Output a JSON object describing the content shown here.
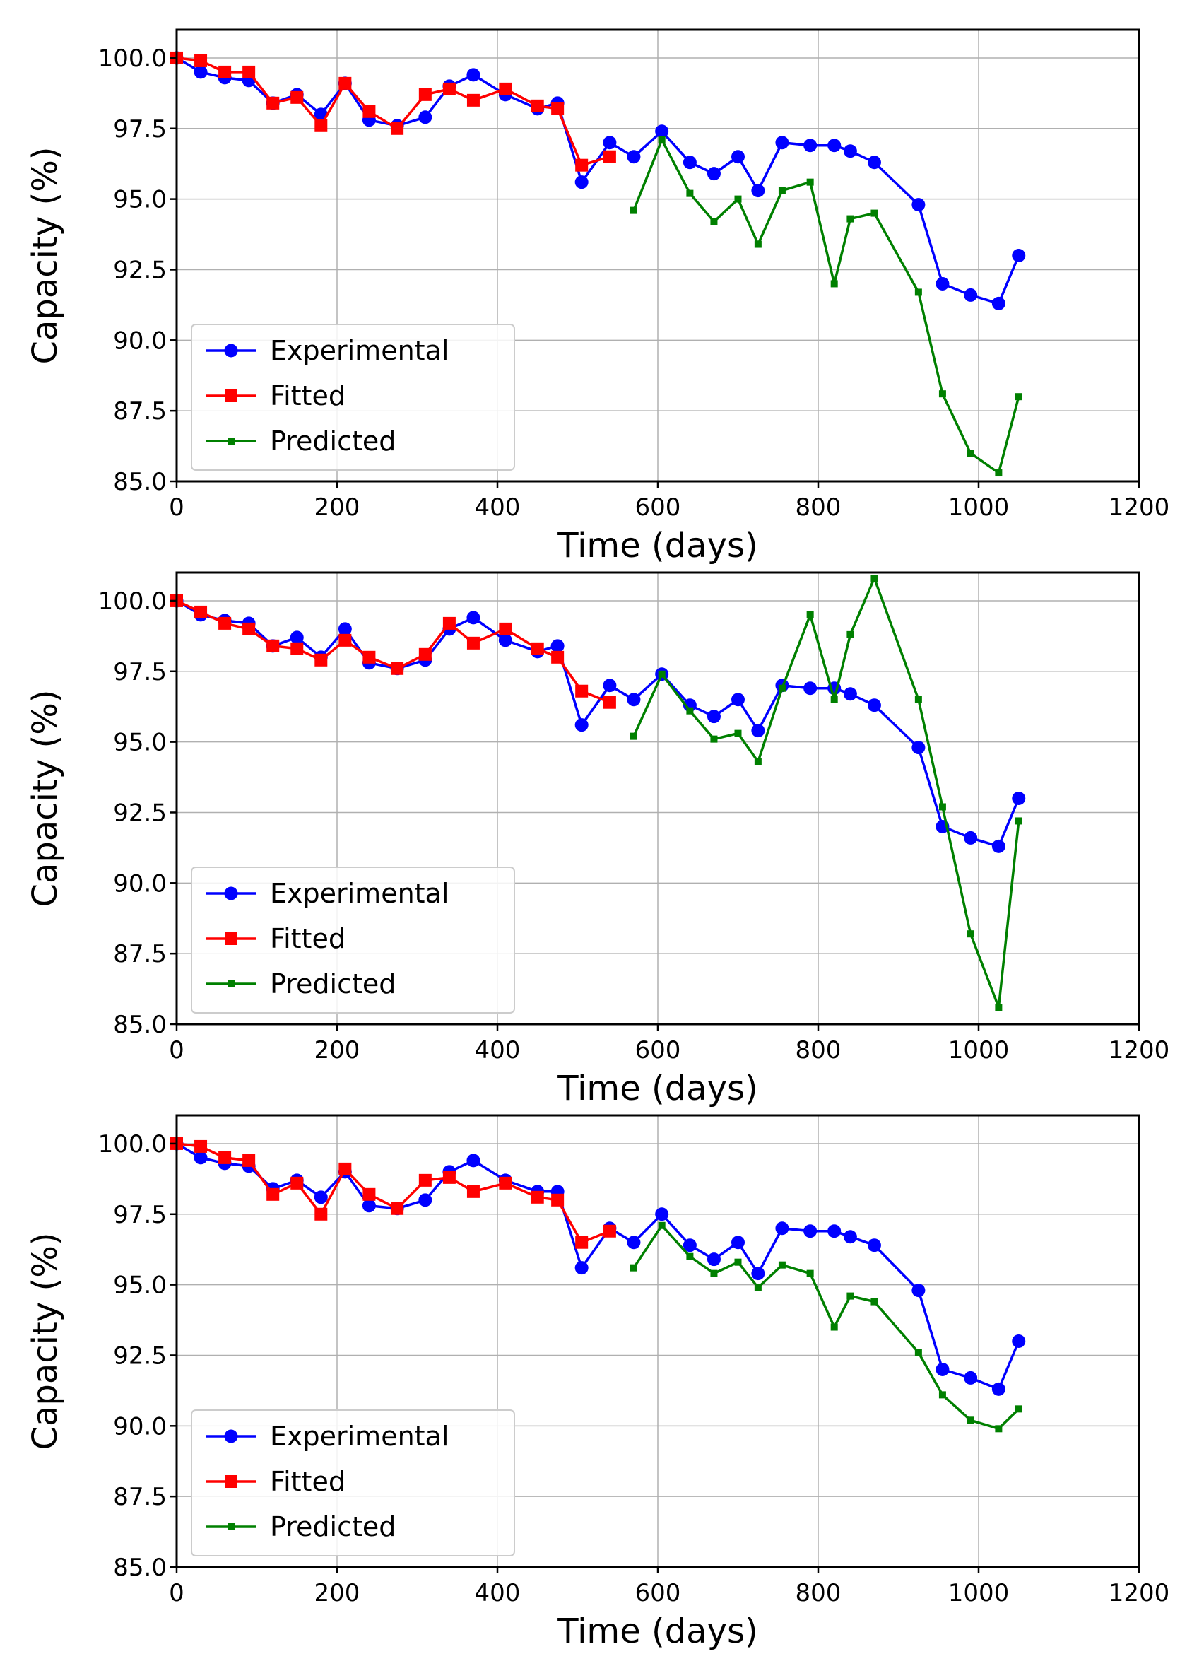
{
  "colors": {
    "experimental": "#0000ff",
    "fitted": "#ff0000",
    "predicted": "#008000",
    "grid": "#b0b0b0",
    "axes": "#000000"
  },
  "chart_data": [
    {
      "type": "line",
      "xlabel": "Time (days)",
      "ylabel": "Capacity (%)",
      "xlim": [
        0,
        1200
      ],
      "ylim": [
        85,
        101
      ],
      "xticks": [
        0,
        200,
        400,
        600,
        800,
        1000,
        1200
      ],
      "xtick_labels": [
        "0",
        "200",
        "400",
        "600",
        "800",
        "1000",
        "1200"
      ],
      "yticks": [
        85,
        87.5,
        90,
        92.5,
        95,
        97.5,
        100
      ],
      "ytick_labels": [
        "85.0",
        "87.5",
        "90.0",
        "92.5",
        "95.0",
        "97.5",
        "100.0"
      ],
      "grid": true,
      "legend_position": "bottom-left",
      "series": [
        {
          "name": "Experimental",
          "color": "#0000ff",
          "marker": "circle",
          "x": [
            0,
            30,
            60,
            90,
            120,
            150,
            180,
            210,
            240,
            275,
            310,
            340,
            370,
            410,
            450,
            475,
            505,
            540,
            570,
            605,
            640,
            670,
            700,
            725,
            755,
            790,
            820,
            840,
            870,
            925,
            955,
            990,
            1025,
            1050
          ],
          "y": [
            100.0,
            99.5,
            99.3,
            99.2,
            98.4,
            98.7,
            98.0,
            99.1,
            97.8,
            97.6,
            97.9,
            99.0,
            99.4,
            98.7,
            98.2,
            98.4,
            95.6,
            97.0,
            96.5,
            97.4,
            96.3,
            95.9,
            96.5,
            95.3,
            97.0,
            96.9,
            96.9,
            96.7,
            96.3,
            94.8,
            92.0,
            91.6,
            91.3,
            93.0
          ]
        },
        {
          "name": "Fitted",
          "color": "#ff0000",
          "marker": "square",
          "x": [
            0,
            30,
            60,
            90,
            120,
            150,
            180,
            210,
            240,
            275,
            310,
            340,
            370,
            410,
            450,
            475,
            505,
            540
          ],
          "y": [
            100.0,
            99.9,
            99.5,
            99.5,
            98.4,
            98.6,
            97.6,
            99.1,
            98.1,
            97.5,
            98.7,
            98.9,
            98.5,
            98.9,
            98.3,
            98.2,
            96.2,
            96.5
          ]
        },
        {
          "name": "Predicted",
          "color": "#008000",
          "marker": "small-square",
          "x": [
            570,
            605,
            640,
            670,
            700,
            725,
            755,
            790,
            820,
            840,
            870,
            925,
            955,
            990,
            1025,
            1050
          ],
          "y": [
            94.6,
            97.1,
            95.2,
            94.2,
            95.0,
            93.4,
            95.3,
            95.6,
            92.0,
            94.3,
            94.5,
            91.7,
            88.1,
            86.0,
            85.3,
            88.0
          ]
        }
      ]
    },
    {
      "type": "line",
      "xlabel": "Time (days)",
      "ylabel": "Capacity (%)",
      "xlim": [
        0,
        1200
      ],
      "ylim": [
        85,
        101
      ],
      "xticks": [
        0,
        200,
        400,
        600,
        800,
        1000,
        1200
      ],
      "xtick_labels": [
        "0",
        "200",
        "400",
        "600",
        "800",
        "1000",
        "1200"
      ],
      "yticks": [
        85,
        87.5,
        90,
        92.5,
        95,
        97.5,
        100
      ],
      "ytick_labels": [
        "85.0",
        "87.5",
        "90.0",
        "92.5",
        "95.0",
        "97.5",
        "100.0"
      ],
      "grid": true,
      "legend_position": "bottom-left",
      "series": [
        {
          "name": "Experimental",
          "color": "#0000ff",
          "marker": "circle",
          "x": [
            0,
            30,
            60,
            90,
            120,
            150,
            180,
            210,
            240,
            275,
            310,
            340,
            370,
            410,
            450,
            475,
            505,
            540,
            570,
            605,
            640,
            670,
            700,
            725,
            755,
            790,
            820,
            840,
            870,
            925,
            955,
            990,
            1025,
            1050
          ],
          "y": [
            100.0,
            99.5,
            99.3,
            99.2,
            98.4,
            98.7,
            98.0,
            99.0,
            97.8,
            97.6,
            97.9,
            99.0,
            99.4,
            98.6,
            98.2,
            98.4,
            95.6,
            97.0,
            96.5,
            97.4,
            96.3,
            95.9,
            96.5,
            95.4,
            97.0,
            96.9,
            96.9,
            96.7,
            96.3,
            94.8,
            92.0,
            91.6,
            91.3,
            93.0
          ]
        },
        {
          "name": "Fitted",
          "color": "#ff0000",
          "marker": "square",
          "x": [
            0,
            30,
            60,
            90,
            120,
            150,
            180,
            210,
            240,
            275,
            310,
            340,
            370,
            410,
            450,
            475,
            505,
            540
          ],
          "y": [
            100.0,
            99.6,
            99.2,
            99.0,
            98.4,
            98.3,
            97.9,
            98.6,
            98.0,
            97.6,
            98.1,
            99.2,
            98.5,
            99.0,
            98.3,
            98.0,
            96.8,
            96.4
          ]
        },
        {
          "name": "Predicted",
          "color": "#008000",
          "marker": "small-square",
          "x": [
            570,
            605,
            640,
            670,
            700,
            725,
            755,
            790,
            820,
            840,
            870,
            925,
            955,
            990,
            1025,
            1050
          ],
          "y": [
            95.2,
            97.4,
            96.1,
            95.1,
            95.3,
            94.3,
            96.9,
            99.5,
            96.5,
            98.8,
            100.8,
            96.5,
            92.7,
            88.2,
            85.6,
            92.2
          ]
        }
      ]
    },
    {
      "type": "line",
      "xlabel": "Time (days)",
      "ylabel": "Capacity (%)",
      "xlim": [
        0,
        1200
      ],
      "ylim": [
        85,
        101
      ],
      "xticks": [
        0,
        200,
        400,
        600,
        800,
        1000,
        1200
      ],
      "xtick_labels": [
        "0",
        "200",
        "400",
        "600",
        "800",
        "1000",
        "1200"
      ],
      "yticks": [
        85,
        87.5,
        90,
        92.5,
        95,
        97.5,
        100
      ],
      "ytick_labels": [
        "85.0",
        "87.5",
        "90.0",
        "92.5",
        "95.0",
        "97.5",
        "100.0"
      ],
      "grid": true,
      "legend_position": "bottom-left",
      "series": [
        {
          "name": "Experimental",
          "color": "#0000ff",
          "marker": "circle",
          "x": [
            0,
            30,
            60,
            90,
            120,
            150,
            180,
            210,
            240,
            275,
            310,
            340,
            370,
            410,
            450,
            475,
            505,
            540,
            570,
            605,
            640,
            670,
            700,
            725,
            755,
            790,
            820,
            840,
            870,
            925,
            955,
            990,
            1025,
            1050
          ],
          "y": [
            100.0,
            99.5,
            99.3,
            99.2,
            98.4,
            98.7,
            98.1,
            99.0,
            97.8,
            97.7,
            98.0,
            99.0,
            99.4,
            98.7,
            98.3,
            98.3,
            95.6,
            97.0,
            96.5,
            97.5,
            96.4,
            95.9,
            96.5,
            95.4,
            97.0,
            96.9,
            96.9,
            96.7,
            96.4,
            94.8,
            92.0,
            91.7,
            91.3,
            93.0
          ]
        },
        {
          "name": "Fitted",
          "color": "#ff0000",
          "marker": "square",
          "x": [
            0,
            30,
            60,
            90,
            120,
            150,
            180,
            210,
            240,
            275,
            310,
            340,
            370,
            410,
            450,
            475,
            505,
            540
          ],
          "y": [
            100.0,
            99.9,
            99.5,
            99.4,
            98.2,
            98.6,
            97.5,
            99.1,
            98.2,
            97.7,
            98.7,
            98.8,
            98.3,
            98.6,
            98.1,
            98.0,
            96.5,
            96.9
          ]
        },
        {
          "name": "Predicted",
          "color": "#008000",
          "marker": "small-square",
          "x": [
            570,
            605,
            640,
            670,
            700,
            725,
            755,
            790,
            820,
            840,
            870,
            925,
            955,
            990,
            1025,
            1050
          ],
          "y": [
            95.6,
            97.1,
            96.0,
            95.4,
            95.8,
            94.9,
            95.7,
            95.4,
            93.5,
            94.6,
            94.4,
            92.6,
            91.1,
            90.2,
            89.9,
            90.6
          ]
        }
      ]
    }
  ]
}
